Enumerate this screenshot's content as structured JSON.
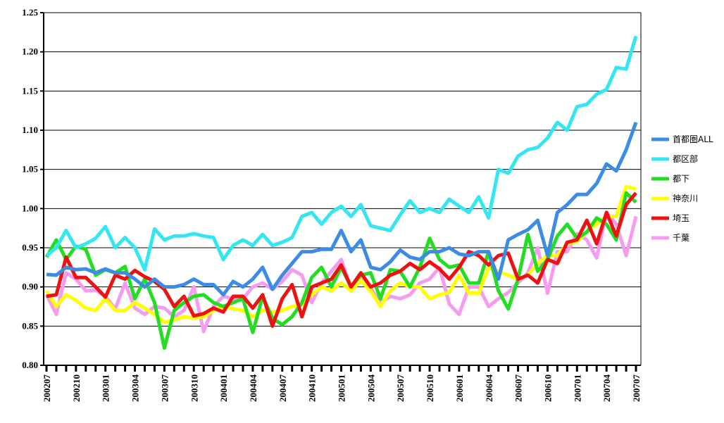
{
  "chart_data": {
    "type": "line",
    "categories": [
      "200207",
      null,
      null,
      "200210",
      null,
      null,
      "200301",
      null,
      null,
      "200304",
      null,
      null,
      "200307",
      null,
      null,
      "200310",
      null,
      null,
      "200401",
      null,
      null,
      "200404",
      null,
      null,
      "200407",
      null,
      null,
      "200410",
      null,
      null,
      "200501",
      null,
      null,
      "200504",
      null,
      null,
      "200507",
      null,
      null,
      "200510",
      null,
      null,
      "200601",
      null,
      null,
      "200604",
      null,
      null,
      "200607",
      null,
      null,
      "200610",
      null,
      null,
      "200701",
      null,
      null,
      "200704",
      null,
      null,
      "200707"
    ],
    "series": [
      {
        "name": "首都圏ALL",
        "color": "#3c8ce6",
        "values": [
          0.916,
          0.915,
          0.925,
          0.922,
          0.923,
          0.918,
          0.923,
          0.918,
          0.918,
          0.91,
          0.9,
          0.91,
          0.9,
          0.9,
          0.903,
          0.91,
          0.903,
          0.903,
          0.89,
          0.907,
          0.9,
          0.91,
          0.925,
          0.897,
          0.915,
          0.93,
          0.945,
          0.945,
          0.948,
          0.948,
          0.972,
          0.945,
          0.96,
          0.925,
          0.922,
          0.932,
          0.947,
          0.938,
          0.935,
          0.945,
          0.945,
          0.95,
          0.942,
          0.94,
          0.945,
          0.945,
          0.91,
          0.96,
          0.967,
          0.973,
          0.985,
          0.94,
          0.995,
          1.005,
          1.018,
          1.018,
          1.032,
          1.057,
          1.048,
          1.075,
          1.11
        ]
      },
      {
        "name": "都区部",
        "color": "#33e6f0",
        "values": [
          0.94,
          0.95,
          0.972,
          0.95,
          0.955,
          0.962,
          0.977,
          0.95,
          0.963,
          0.95,
          0.922,
          0.974,
          0.96,
          0.965,
          0.965,
          0.968,
          0.965,
          0.963,
          0.935,
          0.953,
          0.96,
          0.953,
          0.967,
          0.953,
          0.957,
          0.963,
          0.99,
          0.995,
          0.98,
          0.995,
          1.003,
          0.99,
          1.005,
          0.978,
          0.975,
          0.972,
          0.992,
          1.01,
          0.995,
          1.0,
          0.995,
          1.012,
          1.003,
          0.995,
          1.015,
          0.988,
          1.05,
          1.045,
          1.067,
          1.075,
          1.078,
          1.09,
          1.11,
          1.1,
          1.13,
          1.133,
          1.146,
          1.152,
          1.18,
          1.178,
          1.22
        ]
      },
      {
        "name": "都下",
        "color": "#22dd22",
        "values": [
          0.938,
          0.96,
          0.935,
          0.952,
          0.948,
          0.915,
          0.922,
          0.918,
          0.926,
          0.885,
          0.91,
          0.88,
          0.822,
          0.87,
          0.88,
          0.888,
          0.89,
          0.88,
          0.875,
          0.88,
          0.885,
          0.842,
          0.888,
          0.86,
          0.852,
          0.862,
          0.88,
          0.912,
          0.925,
          0.9,
          0.925,
          0.9,
          0.915,
          0.918,
          0.885,
          0.922,
          0.92,
          0.9,
          0.925,
          0.962,
          0.935,
          0.925,
          0.928,
          0.905,
          0.905,
          0.945,
          0.895,
          0.872,
          0.91,
          0.967,
          0.92,
          0.935,
          0.965,
          0.98,
          0.962,
          0.97,
          0.988,
          0.98,
          0.96,
          1.02,
          1.008
        ]
      },
      {
        "name": "神奈川",
        "color": "#ffff00",
        "values": [
          0.895,
          0.875,
          0.89,
          0.883,
          0.873,
          0.87,
          0.885,
          0.87,
          0.87,
          0.88,
          0.873,
          0.865,
          0.855,
          0.858,
          0.862,
          0.86,
          0.862,
          0.87,
          0.875,
          0.872,
          0.87,
          0.862,
          0.87,
          0.868,
          0.87,
          0.875,
          0.877,
          0.89,
          0.9,
          0.895,
          0.905,
          0.895,
          0.908,
          0.895,
          0.875,
          0.895,
          0.905,
          0.9,
          0.9,
          0.885,
          0.89,
          0.893,
          0.915,
          0.892,
          0.892,
          0.925,
          0.92,
          0.915,
          0.91,
          0.915,
          0.93,
          0.94,
          0.94,
          0.955,
          0.958,
          0.97,
          0.98,
          0.99,
          0.99,
          1.028,
          1.025
        ]
      },
      {
        "name": "埼玉",
        "color": "#ee1111",
        "values": [
          0.888,
          0.89,
          0.938,
          0.912,
          0.912,
          0.9,
          0.887,
          0.915,
          0.91,
          0.921,
          0.913,
          0.907,
          0.897,
          0.875,
          0.888,
          0.863,
          0.866,
          0.873,
          0.868,
          0.888,
          0.888,
          0.873,
          0.89,
          0.85,
          0.885,
          0.903,
          0.862,
          0.9,
          0.905,
          0.91,
          0.928,
          0.9,
          0.918,
          0.9,
          0.905,
          0.915,
          0.92,
          0.93,
          0.922,
          0.932,
          0.923,
          0.91,
          0.925,
          0.945,
          0.94,
          0.928,
          0.94,
          0.943,
          0.91,
          0.915,
          0.905,
          0.935,
          0.93,
          0.957,
          0.96,
          0.985,
          0.955,
          0.995,
          0.965,
          1.005,
          1.02
        ]
      },
      {
        "name": "千葉",
        "color": "#f59cf0",
        "values": [
          0.89,
          0.865,
          0.918,
          0.91,
          0.895,
          0.896,
          0.888,
          0.872,
          0.905,
          0.873,
          0.865,
          0.875,
          0.873,
          0.862,
          0.87,
          0.9,
          0.843,
          0.875,
          0.888,
          0.885,
          0.885,
          0.9,
          0.905,
          0.897,
          0.907,
          0.922,
          0.915,
          0.88,
          0.905,
          0.92,
          0.935,
          0.898,
          0.91,
          0.898,
          0.88,
          0.888,
          0.885,
          0.89,
          0.905,
          0.91,
          0.925,
          0.878,
          0.865,
          0.9,
          0.9,
          0.875,
          0.885,
          0.893,
          0.905,
          0.918,
          0.95,
          0.892,
          0.945,
          0.945,
          0.968,
          0.96,
          0.937,
          0.995,
          0.98,
          0.94,
          0.99
        ]
      }
    ],
    "ylim": [
      0.8,
      1.25
    ],
    "yticks": [
      {
        "value": 0.8,
        "label": "0.80"
      },
      0.85,
      {
        "value": 0.9,
        "label": "0.90"
      },
      0.95,
      {
        "value": 1.0,
        "label": "1.00"
      },
      1.05,
      {
        "value": 1.1,
        "label": "1.10"
      },
      1.15,
      {
        "value": 1.2,
        "label": "1.20"
      },
      1.25
    ],
    "grid": true,
    "legend": "right"
  }
}
